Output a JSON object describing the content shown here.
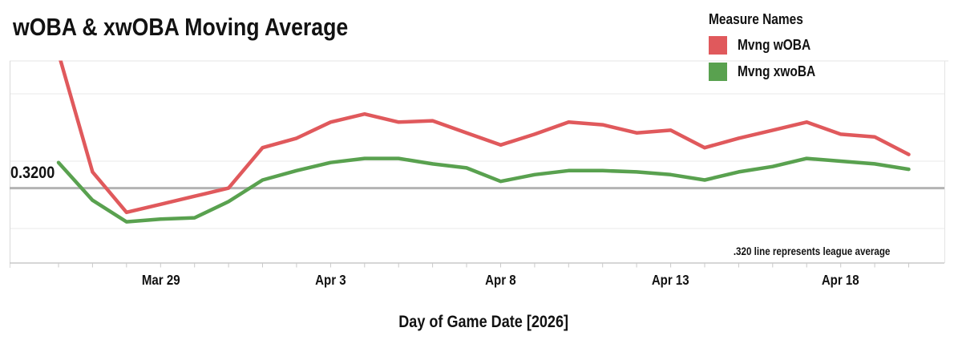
{
  "title": "wOBA & xwOBA Moving Average",
  "legend": {
    "title": "Measure Names",
    "items": [
      {
        "label": "Mvng wOBA",
        "color": "#e0595c"
      },
      {
        "label": "Mvng xwoBA",
        "color": "#59a14f"
      }
    ]
  },
  "reference_line": {
    "label": "0.3200",
    "value": 0.32,
    "annotation": ".320 line represents league average",
    "color": "#b3b3b3"
  },
  "x_axis": {
    "title": "Day of Game Date [2026]",
    "ticks": [
      {
        "label": "Mar 29",
        "day_index": 3
      },
      {
        "label": "Apr 3",
        "day_index": 8
      },
      {
        "label": "Apr 8",
        "day_index": 13
      },
      {
        "label": "Apr 13",
        "day_index": 18
      },
      {
        "label": "Apr 18",
        "day_index": 23
      }
    ]
  },
  "chart_data": {
    "type": "line",
    "title": "wOBA & xwOBA Moving Average",
    "xlabel": "Day of Game Date [2026]",
    "x": [
      "Mar 26",
      "Mar 27",
      "Mar 28",
      "Mar 29",
      "Mar 30",
      "Mar 31",
      "Apr 1",
      "Apr 2",
      "Apr 3",
      "Apr 4",
      "Apr 5",
      "Apr 6",
      "Apr 7",
      "Apr 8",
      "Apr 9",
      "Apr 10",
      "Apr 11",
      "Apr 12",
      "Apr 13",
      "Apr 14",
      "Apr 15",
      "Apr 16",
      "Apr 17",
      "Apr 18",
      "Apr 19",
      "Apr 20"
    ],
    "series": [
      {
        "name": "Mvng wOBA",
        "color": "#e0595c",
        "values": [
          0.42,
          0.332,
          0.302,
          0.308,
          0.314,
          0.32,
          0.35,
          0.357,
          0.369,
          0.375,
          0.369,
          0.37,
          0.361,
          0.352,
          0.36,
          0.369,
          0.367,
          0.361,
          0.363,
          0.35,
          0.357,
          0.363,
          0.369,
          0.36,
          0.358,
          0.345
        ]
      },
      {
        "name": "Mvng xwoBA",
        "color": "#59a14f",
        "values": [
          0.339,
          0.311,
          0.295,
          0.297,
          0.298,
          0.31,
          0.326,
          0.333,
          0.339,
          0.342,
          0.342,
          0.338,
          0.335,
          0.325,
          0.33,
          0.333,
          0.333,
          0.332,
          0.33,
          0.326,
          0.332,
          0.336,
          0.342,
          0.34,
          0.338,
          0.334
        ]
      }
    ],
    "reference_line_value": 0.32,
    "ylim": [
      0.264,
      0.414
    ],
    "y_axis_labels": "hidden (only reference line labeled 0.3200)",
    "grid": "horizontal light gridlines, unlabeled",
    "legend_position": "top-right",
    "notes": "First Mvng wOBA point is clipped above the visible pane top; values estimated from pixel positions against the 0.320 reference line."
  }
}
